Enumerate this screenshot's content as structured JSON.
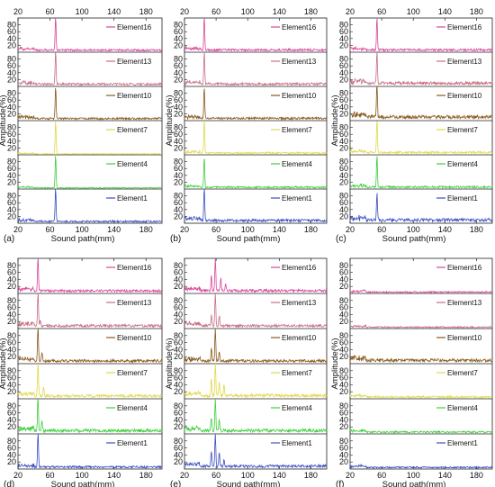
{
  "figure": {
    "xlabel": "Sound path(mm)",
    "ylabel": "Amplitude(%)",
    "x_ticks": [
      "20",
      "60",
      "100",
      "140",
      "180"
    ],
    "y_ticks": [
      "20",
      "40",
      "60",
      "80"
    ],
    "panel_labels": [
      "(a)",
      "(b)",
      "(c)",
      "(d)",
      "(e)",
      "(f)"
    ],
    "row_order": [
      "Element16",
      "Element13",
      "Element10",
      "Element7",
      "Element4",
      "Element1"
    ],
    "series_colors": {
      "Element16": "#d9479b",
      "Element13": "#c86e84",
      "Element10": "#8a5a1c",
      "Element7": "#e0d94a",
      "Element4": "#3ccf3c",
      "Element1": "#3a4ec4"
    }
  },
  "chart_data": [
    {
      "type": "line",
      "panel": "(a)",
      "xlim": [
        20,
        200
      ],
      "ylim": [
        0,
        100
      ],
      "series": [
        {
          "name": "Element16",
          "peaks": [
            [
              67,
              100
            ]
          ],
          "baseline": 9
        },
        {
          "name": "Element13",
          "peaks": [
            [
              67,
              100
            ]
          ],
          "baseline": 10
        },
        {
          "name": "Element10",
          "peaks": [
            [
              67,
              96
            ]
          ],
          "baseline": 9
        },
        {
          "name": "Element7",
          "peaks": [
            [
              67,
              100
            ]
          ],
          "baseline": 4
        },
        {
          "name": "Element4",
          "peaks": [
            [
              67,
              100
            ]
          ],
          "baseline": 5
        },
        {
          "name": "Element1",
          "peaks": [
            [
              67,
              100
            ]
          ],
          "baseline": 8
        }
      ]
    },
    {
      "type": "line",
      "panel": "(b)",
      "xlim": [
        20,
        200
      ],
      "ylim": [
        0,
        100
      ],
      "series": [
        {
          "name": "Element16",
          "peaks": [
            [
              45,
              100
            ]
          ],
          "baseline": 10
        },
        {
          "name": "Element13",
          "peaks": [
            [
              45,
              95
            ]
          ],
          "baseline": 11
        },
        {
          "name": "Element10",
          "peaks": [
            [
              45,
              93
            ]
          ],
          "baseline": 10
        },
        {
          "name": "Element7",
          "peaks": [
            [
              45,
              100
            ]
          ],
          "baseline": 8
        },
        {
          "name": "Element4",
          "peaks": [
            [
              45,
              90
            ]
          ],
          "baseline": 8
        },
        {
          "name": "Element1",
          "peaks": [
            [
              45,
              100
            ]
          ],
          "baseline": 12
        }
      ]
    },
    {
      "type": "line",
      "panel": "(c)",
      "xlim": [
        20,
        200
      ],
      "ylim": [
        0,
        100
      ],
      "series": [
        {
          "name": "Element16",
          "peaks": [
            [
              54,
              100
            ]
          ],
          "baseline": 10
        },
        {
          "name": "Element13",
          "peaks": [
            [
              54,
              100
            ]
          ],
          "baseline": 14
        },
        {
          "name": "Element10",
          "peaks": [
            [
              54,
              100
            ]
          ],
          "baseline": 16
        },
        {
          "name": "Element7",
          "peaks": [
            [
              54,
              100
            ]
          ],
          "baseline": 10
        },
        {
          "name": "Element4",
          "peaks": [
            [
              54,
              95
            ]
          ],
          "baseline": 9
        },
        {
          "name": "Element1",
          "peaks": [
            [
              54,
              80
            ]
          ],
          "baseline": 14
        }
      ]
    },
    {
      "type": "line",
      "panel": "(d)",
      "xlim": [
        20,
        200
      ],
      "ylim": [
        0,
        100
      ],
      "series": [
        {
          "name": "Element16",
          "peaks": [
            [
              45,
              100
            ]
          ],
          "baseline": 11
        },
        {
          "name": "Element13",
          "peaks": [
            [
              45,
              100
            ],
            [
              48,
              18
            ]
          ],
          "baseline": 12
        },
        {
          "name": "Element10",
          "peaks": [
            [
              45,
              100
            ],
            [
              50,
              25
            ]
          ],
          "baseline": 12
        },
        {
          "name": "Element7",
          "peaks": [
            [
              45,
              100
            ],
            [
              52,
              30
            ]
          ],
          "baseline": 12
        },
        {
          "name": "Element4",
          "peaks": [
            [
              45,
              100
            ],
            [
              50,
              30
            ]
          ],
          "baseline": 14
        },
        {
          "name": "Element1",
          "peaks": [
            [
              45,
              100
            ]
          ],
          "baseline": 9
        }
      ]
    },
    {
      "type": "line",
      "panel": "(e)",
      "xlim": [
        20,
        200
      ],
      "ylim": [
        0,
        100
      ],
      "series": [
        {
          "name": "Element16",
          "peaks": [
            [
              59,
              100
            ],
            [
              54,
              45
            ],
            [
              66,
              35
            ],
            [
              72,
              20
            ]
          ],
          "baseline": 12
        },
        {
          "name": "Element13",
          "peaks": [
            [
              59,
              100
            ],
            [
              54,
              30
            ],
            [
              64,
              30
            ]
          ],
          "baseline": 12
        },
        {
          "name": "Element10",
          "peaks": [
            [
              59,
              100
            ],
            [
              54,
              40
            ],
            [
              64,
              25
            ]
          ],
          "baseline": 12
        },
        {
          "name": "Element7",
          "peaks": [
            [
              59,
              100
            ],
            [
              54,
              48
            ],
            [
              64,
              40
            ],
            [
              70,
              30
            ]
          ],
          "baseline": 14
        },
        {
          "name": "Element4",
          "peaks": [
            [
              59,
              100
            ],
            [
              54,
              40
            ],
            [
              64,
              30
            ]
          ],
          "baseline": 14
        },
        {
          "name": "Element1",
          "peaks": [
            [
              59,
              100
            ],
            [
              54,
              45
            ],
            [
              64,
              40
            ],
            [
              70,
              20
            ]
          ],
          "baseline": 12
        }
      ]
    },
    {
      "type": "line",
      "panel": "(f)",
      "xlim": [
        20,
        200
      ],
      "ylim": [
        0,
        100
      ],
      "series": [
        {
          "name": "Element16",
          "peaks": [],
          "baseline": 6
        },
        {
          "name": "Element13",
          "peaks": [],
          "baseline": 6
        },
        {
          "name": "Element10",
          "peaks": [],
          "baseline": 14
        },
        {
          "name": "Element7",
          "peaks": [],
          "baseline": 8
        },
        {
          "name": "Element4",
          "peaks": [],
          "baseline": 8
        },
        {
          "name": "Element1",
          "peaks": [],
          "baseline": 7
        }
      ]
    }
  ]
}
